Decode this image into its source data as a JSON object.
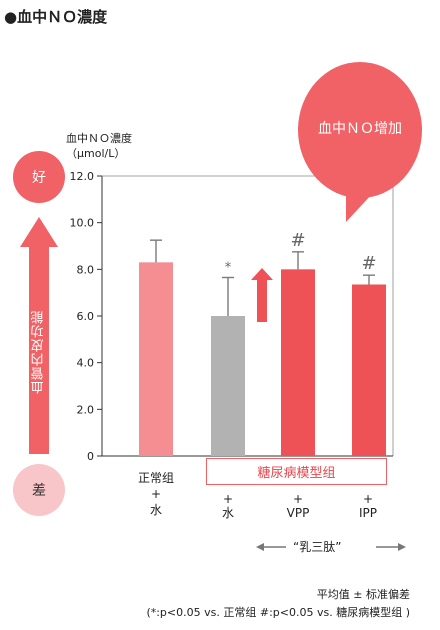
{
  "title": "●血中ＮＯ濃度",
  "chart_data": {
    "type": "bar",
    "ylabel_line1": "血中ＮＯ濃度",
    "ylabel_line2": "（μmol/L）",
    "ylim": [
      0,
      12
    ],
    "yticks": [
      "0",
      "2.0",
      "4.0",
      "6.0",
      "8.0",
      "10.0",
      "12.0"
    ],
    "grid": false,
    "categories": [
      "正常组 + 水",
      "糖尿病模型组 + 水",
      "糖尿病模型组 + VPP",
      "糖尿病模型组 + IPP"
    ],
    "values": [
      8.3,
      6.0,
      8.0,
      7.35
    ],
    "errors": [
      0.95,
      1.65,
      0.75,
      0.4
    ],
    "markers": [
      "",
      "*",
      "#",
      "#"
    ],
    "colors": [
      "#f48e92",
      "#b2b2b2",
      "#ee5256",
      "#ee5256"
    ]
  },
  "x_labels": {
    "group1_name": "正常组",
    "group1_plus": "+",
    "group1_water": "水",
    "diabetes_group": "糖尿病模型组",
    "plus": "+",
    "water": "水",
    "vpp": "VPP",
    "ipp": "IPP"
  },
  "side_scale": {
    "good": "好",
    "bad": "差",
    "function_label": "血管内皮功能"
  },
  "bubble": {
    "text": "血中ＮＯ增加"
  },
  "peptide_label": "“乳三肽”",
  "footnotes": {
    "line1": "平均值 ± 标准偏差",
    "line2": "(*:p<0.05 vs. 正常组 #:p<0.05 vs. 糖尿病模型组 )"
  },
  "colors": {
    "accent_red": "#ee5256",
    "light_red": "#f48e92",
    "gray": "#b2b2b2",
    "pale_red": "#f8c6c8"
  }
}
